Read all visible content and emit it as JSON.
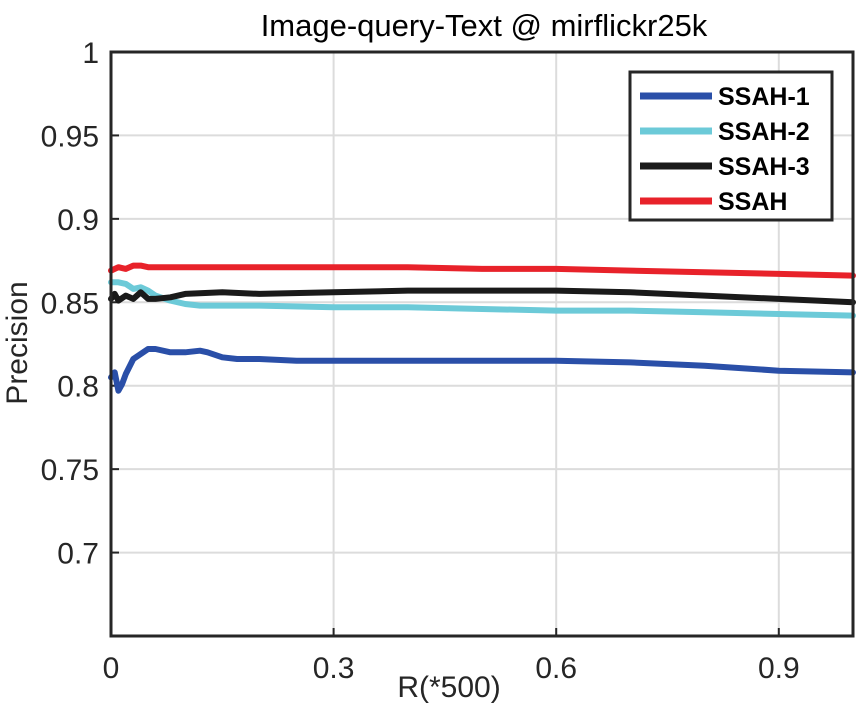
{
  "chart_data": {
    "type": "line",
    "title": "Image-query-Text @ mirflickr25k",
    "xlabel": "R(*500)",
    "ylabel": "Precision",
    "xlim": [
      0,
      1
    ],
    "ylim": [
      0.65,
      1
    ],
    "x_ticks": [
      "0",
      "0.3",
      "0.6",
      "0.9"
    ],
    "x_tick_values": [
      0,
      0.3,
      0.6,
      0.9
    ],
    "y_ticks": [
      "0.7",
      "0.75",
      "0.8",
      "0.85",
      "0.9",
      "0.95",
      "1"
    ],
    "y_tick_values": [
      0.7,
      0.75,
      0.8,
      0.85,
      0.9,
      0.95,
      1
    ],
    "grid": true,
    "legend_position": "top-right",
    "series": [
      {
        "name": "SSAH-1",
        "color": "#2a4fa8",
        "x": [
          0.0,
          0.005,
          0.01,
          0.015,
          0.02,
          0.03,
          0.04,
          0.05,
          0.06,
          0.08,
          0.1,
          0.12,
          0.13,
          0.15,
          0.17,
          0.2,
          0.25,
          0.3,
          0.4,
          0.5,
          0.6,
          0.7,
          0.8,
          0.9,
          1.0
        ],
        "y": [
          0.805,
          0.808,
          0.797,
          0.801,
          0.807,
          0.816,
          0.819,
          0.822,
          0.822,
          0.82,
          0.82,
          0.821,
          0.82,
          0.817,
          0.816,
          0.816,
          0.815,
          0.815,
          0.815,
          0.815,
          0.815,
          0.814,
          0.812,
          0.809,
          0.808
        ]
      },
      {
        "name": "SSAH-2",
        "color": "#6ccad8",
        "x": [
          0.0,
          0.01,
          0.02,
          0.03,
          0.04,
          0.05,
          0.06,
          0.08,
          0.1,
          0.12,
          0.15,
          0.2,
          0.3,
          0.4,
          0.5,
          0.6,
          0.7,
          0.8,
          0.9,
          1.0
        ],
        "y": [
          0.862,
          0.862,
          0.861,
          0.858,
          0.859,
          0.857,
          0.854,
          0.851,
          0.849,
          0.848,
          0.848,
          0.848,
          0.847,
          0.847,
          0.846,
          0.845,
          0.845,
          0.844,
          0.843,
          0.842
        ]
      },
      {
        "name": "SSAH-3",
        "color": "#1a1a1a",
        "x": [
          0.0,
          0.005,
          0.01,
          0.02,
          0.03,
          0.04,
          0.05,
          0.06,
          0.08,
          0.1,
          0.15,
          0.2,
          0.3,
          0.4,
          0.5,
          0.6,
          0.7,
          0.8,
          0.9,
          1.0
        ],
        "y": [
          0.852,
          0.855,
          0.851,
          0.854,
          0.852,
          0.856,
          0.852,
          0.852,
          0.853,
          0.855,
          0.856,
          0.855,
          0.856,
          0.857,
          0.857,
          0.857,
          0.856,
          0.854,
          0.852,
          0.85
        ]
      },
      {
        "name": "SSAH",
        "color": "#e8222a",
        "x": [
          0.0,
          0.01,
          0.02,
          0.03,
          0.04,
          0.05,
          0.06,
          0.08,
          0.1,
          0.15,
          0.2,
          0.3,
          0.4,
          0.5,
          0.6,
          0.7,
          0.8,
          0.9,
          1.0
        ],
        "y": [
          0.869,
          0.871,
          0.87,
          0.872,
          0.872,
          0.871,
          0.871,
          0.871,
          0.871,
          0.871,
          0.871,
          0.871,
          0.871,
          0.87,
          0.87,
          0.869,
          0.868,
          0.867,
          0.866
        ]
      }
    ]
  }
}
